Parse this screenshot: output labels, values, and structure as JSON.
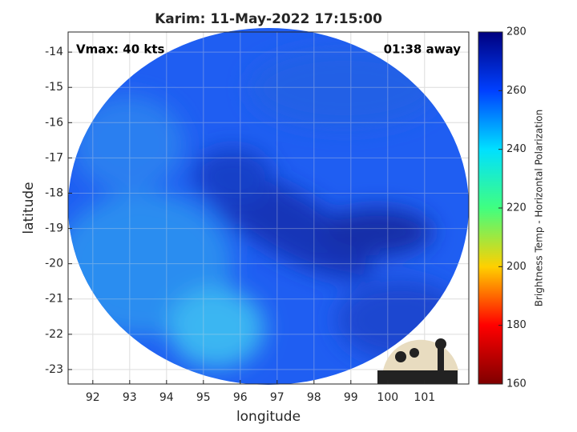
{
  "chart_data": {
    "type": "map",
    "title": "Karim: 11-May-2022 17:15:00",
    "annotations": [
      "Vmax: 40 kts",
      "01:38 away"
    ],
    "xlabel": "longitude",
    "ylabel": "latitude",
    "xlim": [
      91.33,
      102.2
    ],
    "ylim": [
      -23.41,
      -13.43
    ],
    "xticks": [
      92,
      93,
      94,
      95,
      96,
      97,
      98,
      99,
      100,
      101
    ],
    "yticks": [
      -14,
      -15,
      -16,
      -17,
      -18,
      -19,
      -20,
      -21,
      -22,
      -23
    ],
    "grid": true,
    "colorbar": {
      "label": "Brightness Temp - Horizontal Polarization",
      "lim": [
        160,
        280
      ],
      "ticks": [
        160,
        180,
        200,
        220,
        240,
        260,
        280
      ],
      "colormap": [
        "#7f0000",
        "#ff0000",
        "#ffd000",
        "#40ff80",
        "#00e0ff",
        "#0040ff",
        "#00007f"
      ]
    },
    "logo": "CIMSS"
  }
}
